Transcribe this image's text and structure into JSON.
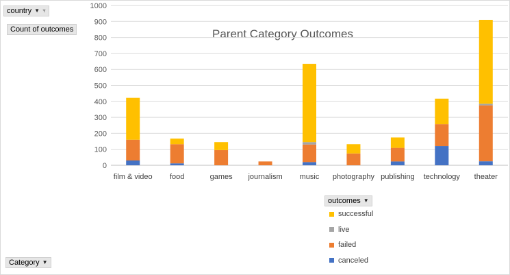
{
  "filters": {
    "country_label": "country",
    "values_label": "Count of outcomes",
    "category_label": "Category",
    "legend_field_label": "outcomes"
  },
  "chart_data": {
    "type": "bar",
    "stacked": true,
    "title": "Parent Category Outcomes",
    "categories": [
      "film & video",
      "food",
      "games",
      "journalism",
      "music",
      "photography",
      "publishing",
      "technology",
      "theater"
    ],
    "ylim": [
      0,
      1000
    ],
    "yticks": [
      0,
      100,
      200,
      300,
      400,
      500,
      600,
      700,
      800,
      900,
      1000
    ],
    "grid": true,
    "legend_position": "bottom-right",
    "series": [
      {
        "name": "canceled",
        "color": "#4472c4",
        "values": [
          30,
          12,
          0,
          0,
          20,
          0,
          24,
          120,
          25
        ]
      },
      {
        "name": "failed",
        "color": "#ed7d31",
        "values": [
          130,
          120,
          95,
          24,
          110,
          74,
          85,
          137,
          350
        ]
      },
      {
        "name": "live",
        "color": "#a5a5a5",
        "values": [
          0,
          0,
          0,
          0,
          15,
          0,
          0,
          0,
          10
        ]
      },
      {
        "name": "successful",
        "color": "#ffc000",
        "values": [
          262,
          35,
          50,
          0,
          490,
          58,
          65,
          160,
          525
        ]
      }
    ]
  }
}
